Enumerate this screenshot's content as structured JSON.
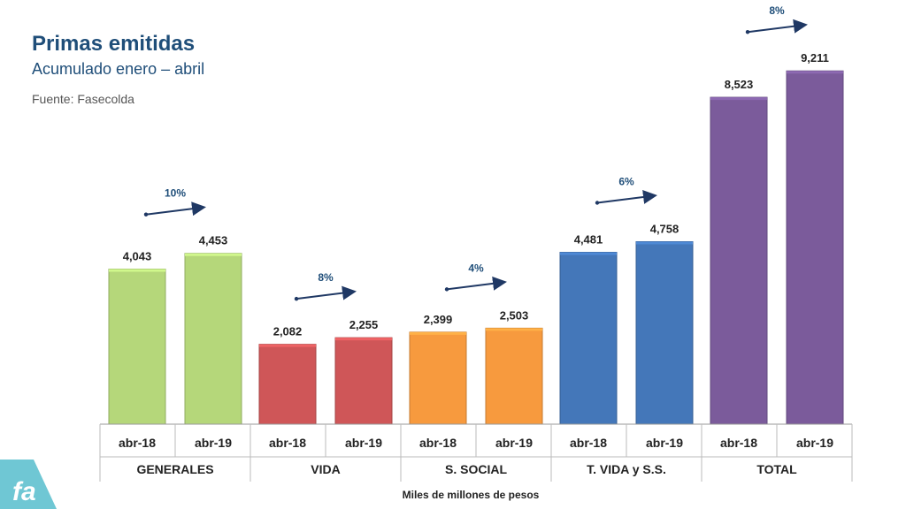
{
  "header": {
    "title": "Primas emitidas",
    "subtitle": "Acumulado enero – abril",
    "source": "Fuente: Fasecolda"
  },
  "footer": {
    "unit_label": "Miles de millones de pesos"
  },
  "logo": {
    "icon": "fa-logo-icon",
    "color": "#6fc7d4"
  },
  "chart_data": {
    "type": "bar",
    "ylim": [
      0,
      10000
    ],
    "grid": false,
    "legend": "none",
    "groups": [
      {
        "name": "GENERALES",
        "color": "#b5d77a",
        "growth": "10%",
        "bars": [
          {
            "period": "abr-18",
            "value": 4043,
            "label": "4,043"
          },
          {
            "period": "abr-19",
            "value": 4453,
            "label": "4,453"
          }
        ]
      },
      {
        "name": "VIDA",
        "color": "#cf5658",
        "growth": "8%",
        "bars": [
          {
            "period": "abr-18",
            "value": 2082,
            "label": "2,082"
          },
          {
            "period": "abr-19",
            "value": 2255,
            "label": "2,255"
          }
        ]
      },
      {
        "name": "S. SOCIAL",
        "color": "#f79a3e",
        "growth": "4%",
        "bars": [
          {
            "period": "abr-18",
            "value": 2399,
            "label": "2,399"
          },
          {
            "period": "abr-19",
            "value": 2503,
            "label": "2,503"
          }
        ]
      },
      {
        "name": "T. VIDA y S.S.",
        "color": "#4477b9",
        "growth": "6%",
        "bars": [
          {
            "period": "abr-18",
            "value": 4481,
            "label": "4,481"
          },
          {
            "period": "abr-19",
            "value": 4758,
            "label": "4,758"
          }
        ]
      },
      {
        "name": "TOTAL",
        "color": "#7b5b9b",
        "growth": "8%",
        "bars": [
          {
            "period": "abr-18",
            "value": 8523,
            "label": "8,523"
          },
          {
            "period": "abr-19",
            "value": 9211,
            "label": "9,211"
          }
        ]
      }
    ]
  }
}
